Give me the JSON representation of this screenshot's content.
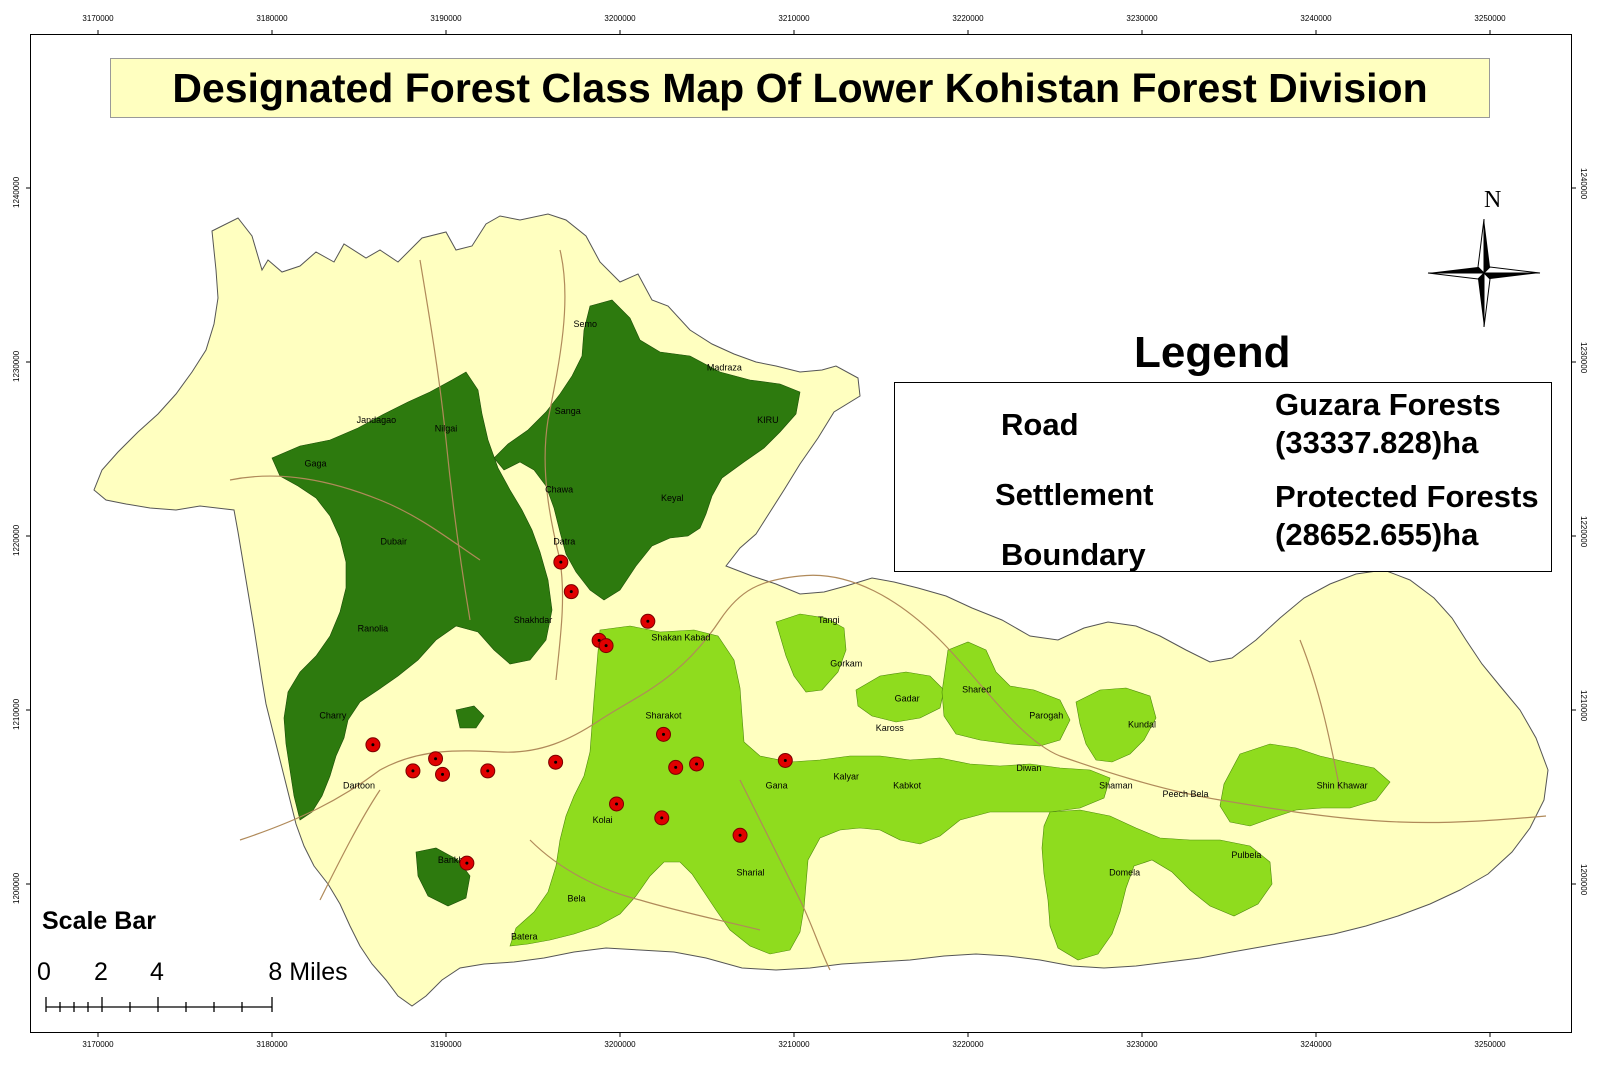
{
  "title": "Designated Forest Class Map Of Lower Kohistan Forest Division",
  "x_ticks": [
    "3170000",
    "3180000",
    "3190000",
    "3200000",
    "3210000",
    "3220000",
    "3230000",
    "3240000",
    "3250000"
  ],
  "y_ticks": [
    "1240000",
    "1230000",
    "1220000",
    "1210000",
    "1200000"
  ],
  "legend": {
    "title": "Legend",
    "road": "Road",
    "settlement": "Settlement",
    "boundary": "Boundary",
    "guzara_line1": "Guzara Forests",
    "guzara_line2": "(33337.828)ha",
    "protected_line1": "Protected Forests",
    "protected_line2": "(28652.655)ha"
  },
  "north_label": "N",
  "scale_bar": {
    "title": "Scale Bar",
    "labels": [
      "0",
      "2",
      "4",
      "8 Miles"
    ]
  },
  "colors": {
    "boundary_fill": "#ffffc0",
    "guzara": "#8fdc1e",
    "protected": "#2d7a0e",
    "road": "#b08a5a",
    "settlement": "#e00000"
  },
  "settlements": [
    {
      "easting": 3196600,
      "northing": 1218500
    },
    {
      "easting": 3197200,
      "northing": 1216800
    },
    {
      "easting": 3198800,
      "northing": 1214000
    },
    {
      "easting": 3199200,
      "northing": 1213700
    },
    {
      "easting": 3201600,
      "northing": 1215100
    },
    {
      "easting": 3185800,
      "northing": 1208000
    },
    {
      "easting": 3188100,
      "northing": 1206500
    },
    {
      "easting": 3189400,
      "northing": 1207200
    },
    {
      "easting": 3189800,
      "northing": 1206300
    },
    {
      "easting": 3192400,
      "northing": 1206500
    },
    {
      "easting": 3196300,
      "northing": 1207000
    },
    {
      "easting": 3202500,
      "northing": 1208600
    },
    {
      "easting": 3203200,
      "northing": 1206700
    },
    {
      "easting": 3204400,
      "northing": 1206900
    },
    {
      "easting": 3209500,
      "northing": 1207100
    },
    {
      "easting": 3199800,
      "northing": 1204600
    },
    {
      "easting": 3202400,
      "northing": 1203800
    },
    {
      "easting": 3206900,
      "northing": 1202800
    },
    {
      "easting": 3191200,
      "northing": 1201200
    }
  ],
  "forest_labels": [
    {
      "text": "Semo",
      "easting": 3198000,
      "northing": 1232000,
      "class": "protected"
    },
    {
      "text": "Madraza",
      "easting": 3206000,
      "northing": 1229500,
      "class": "protected"
    },
    {
      "text": "Nilgai",
      "easting": 3190000,
      "northing": 1226000,
      "class": "protected"
    },
    {
      "text": "Jandagao",
      "easting": 3186000,
      "northing": 1226500,
      "class": "protected"
    },
    {
      "text": "Gaga",
      "easting": 3182500,
      "northing": 1224000,
      "class": "protected"
    },
    {
      "text": "Sanga",
      "easting": 3197000,
      "northing": 1227000,
      "class": "protected"
    },
    {
      "text": "KIRU",
      "easting": 3208500,
      "northing": 1226500,
      "class": "protected"
    },
    {
      "text": "Keyal",
      "easting": 3203000,
      "northing": 1222000,
      "class": "protected"
    },
    {
      "text": "Chawa",
      "easting": 3196500,
      "northing": 1222500,
      "class": "protected"
    },
    {
      "text": "Dubair",
      "easting": 3187000,
      "northing": 1219500,
      "class": "protected"
    },
    {
      "text": "Shakhdar",
      "easting": 3195000,
      "northing": 1215000,
      "class": "protected"
    },
    {
      "text": "Datra",
      "easting": 3196800,
      "northing": 1219500,
      "class": "protected"
    },
    {
      "text": "Ranolia",
      "easting": 3185800,
      "northing": 1214500,
      "class": "protected"
    },
    {
      "text": "Charry",
      "easting": 3183500,
      "northing": 1209500,
      "class": "protected"
    },
    {
      "text": "Dartoon",
      "easting": 3185000,
      "northing": 1205500,
      "class": "protected"
    },
    {
      "text": "Bankhar",
      "easting": 3190500,
      "northing": 1201200,
      "class": "protected"
    },
    {
      "text": "Shakan Kabad",
      "easting": 3203500,
      "northing": 1214000,
      "class": "guzara"
    },
    {
      "text": "Sharakot",
      "easting": 3202500,
      "northing": 1209500,
      "class": "guzara"
    },
    {
      "text": "Kolai",
      "easting": 3199000,
      "northing": 1203500,
      "class": "guzara"
    },
    {
      "text": "Bela",
      "easting": 3197500,
      "northing": 1199000,
      "class": "guzara"
    },
    {
      "text": "Batera",
      "easting": 3194500,
      "northing": 1196800,
      "class": "guzara"
    },
    {
      "text": "Sharial",
      "easting": 3207500,
      "northing": 1200500,
      "class": "guzara"
    },
    {
      "text": "Tangi",
      "easting": 3212000,
      "northing": 1215000,
      "class": "guzara"
    },
    {
      "text": "Gorkam",
      "easting": 3213000,
      "northing": 1212500,
      "class": "guzara"
    },
    {
      "text": "Gadar",
      "easting": 3216500,
      "northing": 1210500,
      "class": "guzara"
    },
    {
      "text": "Shared",
      "easting": 3220500,
      "northing": 1211000,
      "class": "guzara"
    },
    {
      "text": "Parogah",
      "easting": 3224500,
      "northing": 1209500,
      "class": "guzara"
    },
    {
      "text": "Kundal",
      "easting": 3230000,
      "northing": 1209000,
      "class": "guzara"
    },
    {
      "text": "Kabkot",
      "easting": 3216500,
      "northing": 1205500,
      "class": "guzara"
    },
    {
      "text": "Kalyar",
      "easting": 3213000,
      "northing": 1206000,
      "class": "guzara"
    },
    {
      "text": "Diwan",
      "easting": 3223500,
      "northing": 1206500,
      "class": "guzara"
    },
    {
      "text": "Shaman",
      "easting": 3228500,
      "northing": 1205500,
      "class": "guzara"
    },
    {
      "text": "Peech Bela",
      "easting": 3232500,
      "northing": 1205000,
      "class": "guzara"
    },
    {
      "text": "Domela",
      "easting": 3229000,
      "northing": 1200500,
      "class": "guzara"
    },
    {
      "text": "Pulbela",
      "easting": 3236000,
      "northing": 1201500,
      "class": "guzara"
    },
    {
      "text": "Shin Khawar",
      "easting": 3241500,
      "northing": 1205500,
      "class": "guzara"
    },
    {
      "text": "Gana",
      "easting": 3209000,
      "northing": 1205500,
      "class": "guzara"
    },
    {
      "text": "Kaross",
      "easting": 3215500,
      "northing": 1208800,
      "class": "guzara"
    }
  ]
}
